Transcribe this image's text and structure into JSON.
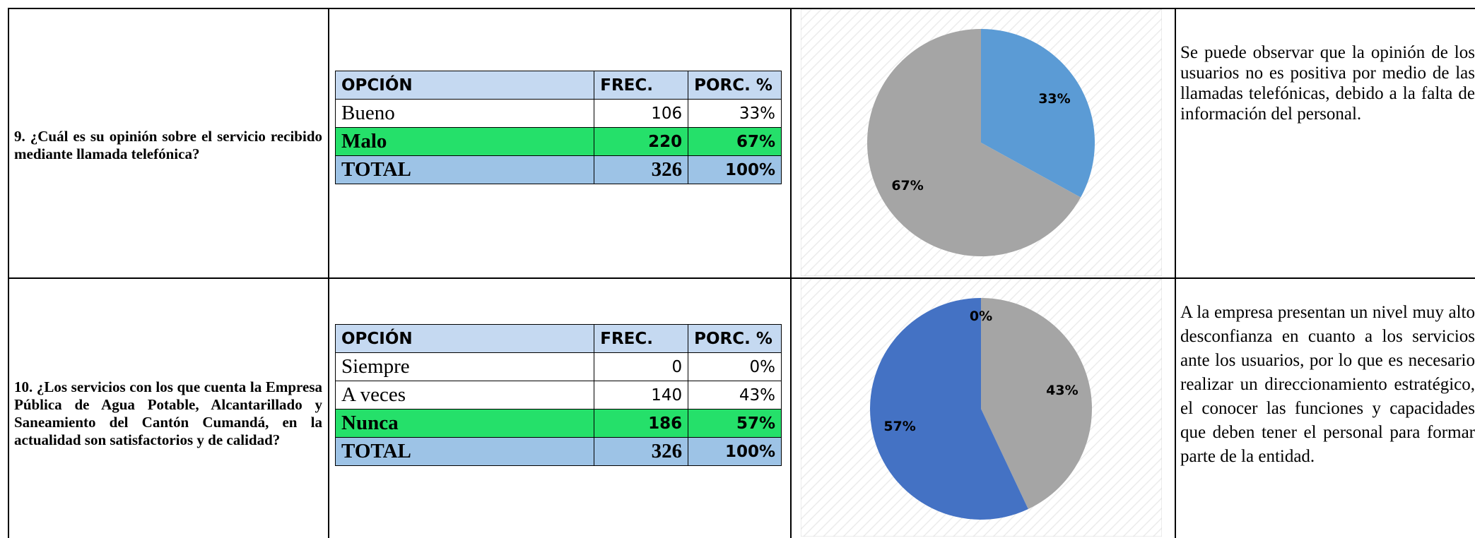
{
  "rows": [
    {
      "question": "9. ¿Cuál es su opinión sobre el servicio recibido mediante llamada telefónica?",
      "table": {
        "header": [
          "OPCIÓN",
          "FREC.",
          "PORC. %"
        ],
        "rows": [
          [
            "Bueno",
            "106",
            "33%"
          ],
          [
            "Malo",
            "220",
            "67%"
          ],
          [
            "TOTAL",
            "326",
            "100%"
          ]
        ]
      },
      "chart": {
        "type": "pie",
        "values": [
          33,
          67
        ],
        "value_labels": [
          "33%",
          "67%"
        ],
        "colors": [
          "#5b9bd5",
          "#a5a5a5"
        ]
      },
      "description": "Se puede observar que la opinión de los usuarios no es positiva por medio de las llamadas telefónicas, debido a la falta de información del personal."
    },
    {
      "question": "10. ¿Los servicios con los que cuenta la Empresa Pública de Agua Potable, Alcantarillado y Saneamiento del Cantón Cumandá, en la actualidad son satisfactorios y de calidad?",
      "table": {
        "header": [
          "OPCIÓN",
          "FREC.",
          "PORC. %"
        ],
        "rows": [
          [
            "Siempre",
            "0",
            "0%"
          ],
          [
            "A veces",
            "140",
            "43%"
          ],
          [
            "Nunca",
            "186",
            "57%"
          ],
          [
            "TOTAL",
            "326",
            "100%"
          ]
        ]
      },
      "chart": {
        "type": "pie",
        "values": [
          0,
          43,
          57
        ],
        "value_labels": [
          "0%",
          "43%",
          "57%"
        ],
        "colors": [
          "#5b9bd5",
          "#a5a5a5",
          "#4472c4"
        ]
      },
      "description": "A la empresa presentan un nivel muy alto desconfianza en cuanto a los servicios ante los usuarios, por lo que es necesario realizar un direccionamiento estratégico, el conocer las funciones y capacidades que deben tener el personal para formar parte de la entidad."
    }
  ]
}
